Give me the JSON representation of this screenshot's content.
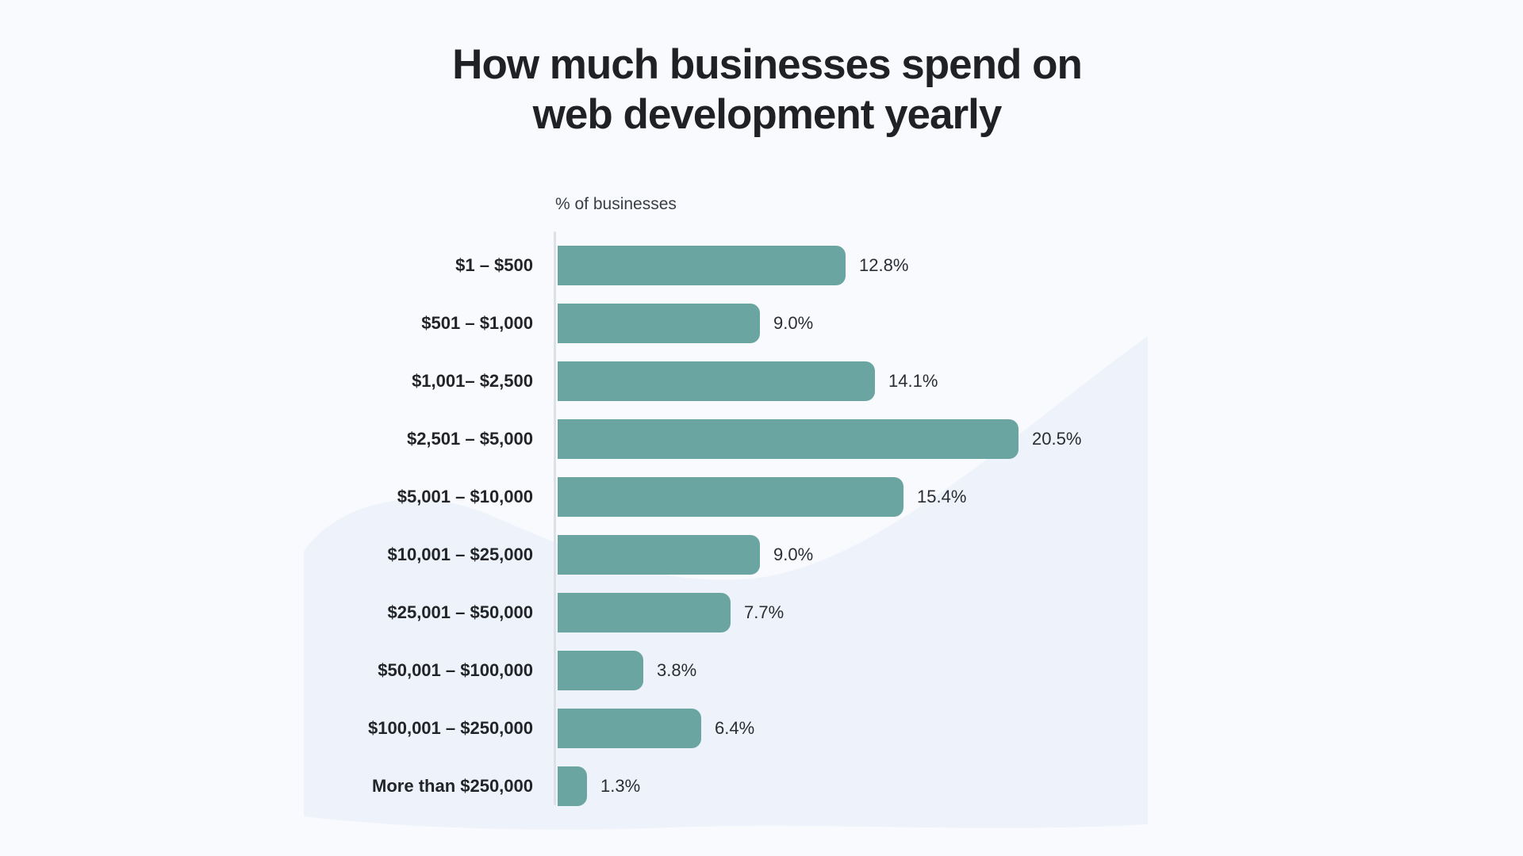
{
  "page": {
    "background_color": "#f8fafd",
    "wave_color": "#edf2fb"
  },
  "header": {
    "title_line1": "How much businesses spend on",
    "title_line2": "web development yearly"
  },
  "chart_data": {
    "type": "bar",
    "orientation": "horizontal",
    "title": "How much businesses spend on web development yearly",
    "axis_label": "% of businesses",
    "categories": [
      "$1 – $500",
      "$501 – $1,000",
      "$1,001– $2,500",
      "$2,501 – $5,000",
      "$5,001 – $10,000",
      "$10,001 – $25,000",
      "$25,001 – $50,000",
      "$50,001 – $100,000",
      "$100,001 – $250,000",
      "More than $250,000"
    ],
    "values": [
      12.8,
      9.0,
      14.1,
      20.5,
      15.4,
      9.0,
      7.7,
      3.8,
      6.4,
      1.3
    ],
    "value_labels": [
      "12.8%",
      "9.0%",
      "14.1%",
      "20.5%",
      "15.4%",
      "9.0%",
      "7.7%",
      "3.8%",
      "6.4%",
      "1.3%"
    ],
    "xlim": [
      0,
      20.5
    ],
    "bar_color": "#6ba5a2",
    "grid": false,
    "legend": "none"
  }
}
